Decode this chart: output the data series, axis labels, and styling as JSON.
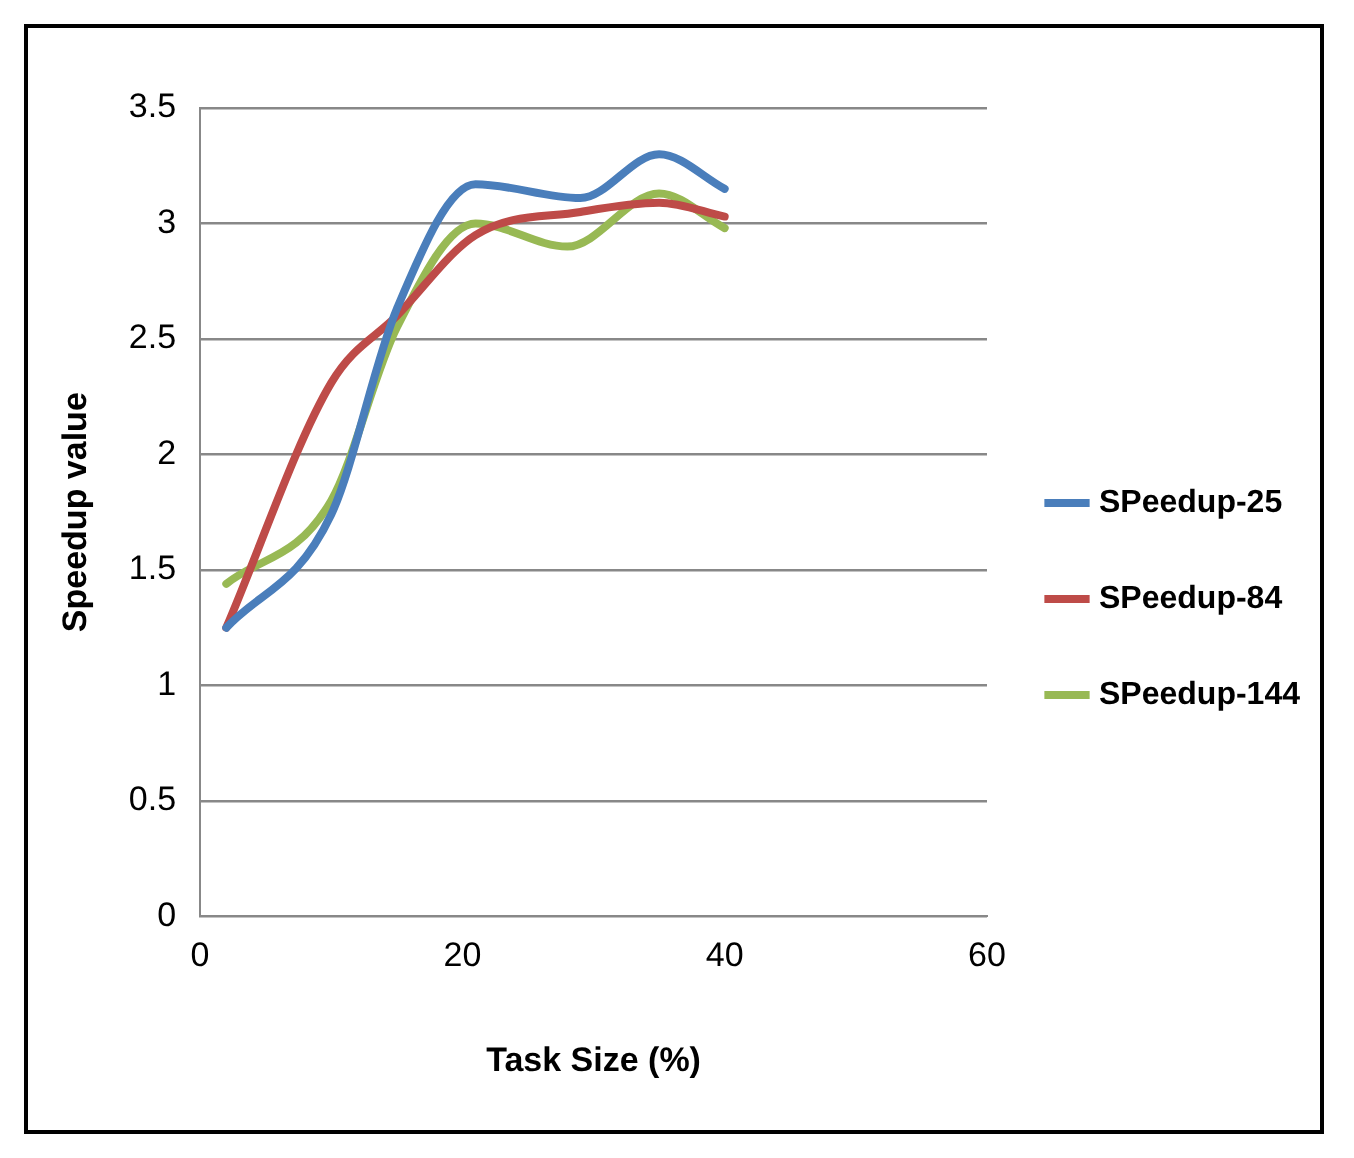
{
  "chart_data": {
    "type": "line",
    "xlabel": "Task Size (%)",
    "ylabel": "Speedup value",
    "xlim": [
      0,
      60
    ],
    "xticks": [
      0,
      20,
      40,
      60
    ],
    "ylim": [
      0,
      3.5
    ],
    "yticks": [
      0,
      0.5,
      1,
      1.5,
      2,
      2.5,
      3,
      3.5
    ],
    "grid": "y",
    "legend": "right",
    "marker": "none",
    "line_style": "solid",
    "series": [
      {
        "name": "SPeedup-25",
        "color": "#4a7ebb",
        "x": [
          2,
          10,
          15,
          21,
          29,
          35,
          40
        ],
        "values": [
          1.25,
          1.74,
          2.63,
          3.17,
          3.11,
          3.3,
          3.15
        ]
      },
      {
        "name": "SPeedup-84",
        "color": "#be4b48",
        "x": [
          2,
          10,
          15,
          21,
          29,
          35,
          40
        ],
        "values": [
          1.25,
          2.31,
          2.6,
          2.95,
          3.05,
          3.09,
          3.03
        ]
      },
      {
        "name": "SPeedup-144",
        "color": "#98b954",
        "x": [
          2,
          10,
          15,
          21,
          28,
          35,
          40
        ],
        "values": [
          1.44,
          1.8,
          2.55,
          3.0,
          2.9,
          3.13,
          2.98
        ]
      }
    ]
  }
}
